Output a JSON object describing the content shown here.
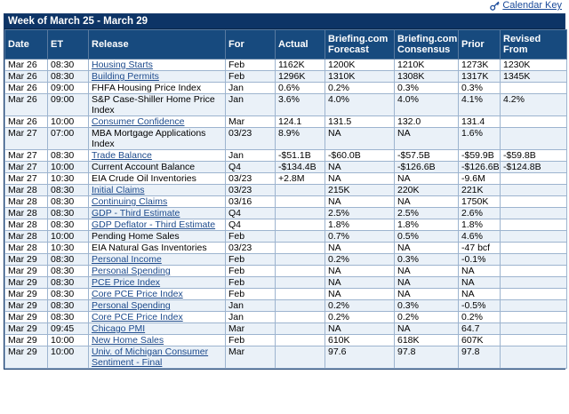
{
  "calendar_key_label": "Calendar Key",
  "week_title": "Week of March 25 - March 29",
  "headers": [
    "Date",
    "ET",
    "Release",
    "For",
    "Actual",
    "Briefing.com Forecast",
    "Briefing.com Consensus",
    "Prior",
    "Revised From"
  ],
  "rows": [
    {
      "date": "Mar 26",
      "et": "08:30",
      "release": "Housing Starts",
      "link": true,
      "for": "Feb",
      "actual": "1162K",
      "forecast": "1200K",
      "consensus": "1210K",
      "prior": "1273K",
      "revised": "1230K"
    },
    {
      "date": "Mar 26",
      "et": "08:30",
      "release": "Building Permits",
      "link": true,
      "for": "Feb",
      "actual": "1296K",
      "forecast": "1310K",
      "consensus": "1308K",
      "prior": "1317K",
      "revised": "1345K"
    },
    {
      "date": "Mar 26",
      "et": "09:00",
      "release": "FHFA Housing Price Index",
      "link": false,
      "for": "Jan",
      "actual": "0.6%",
      "forecast": "0.2%",
      "consensus": "0.3%",
      "prior": "0.3%",
      "revised": ""
    },
    {
      "date": "Mar 26",
      "et": "09:00",
      "release": "S&P Case-Shiller Home Price Index",
      "link": false,
      "tall": true,
      "for": "Jan",
      "actual": "3.6%",
      "forecast": "4.0%",
      "consensus": "4.0%",
      "prior": "4.1%",
      "revised": "4.2%"
    },
    {
      "date": "Mar 26",
      "et": "10:00",
      "release": "Consumer Confidence",
      "link": true,
      "for": "Mar",
      "actual": "124.1",
      "forecast": "131.5",
      "consensus": "132.0",
      "prior": "131.4",
      "revised": ""
    },
    {
      "date": "Mar 27",
      "et": "07:00",
      "release": "MBA Mortgage Applications Index",
      "link": false,
      "tall": true,
      "for": "03/23",
      "actual": "8.9%",
      "forecast": "NA",
      "consensus": "NA",
      "prior": "1.6%",
      "revised": ""
    },
    {
      "date": "Mar 27",
      "et": "08:30",
      "release": "Trade Balance",
      "link": true,
      "for": "Jan",
      "actual": "-$51.1B",
      "forecast": "-$60.0B",
      "consensus": "-$57.5B",
      "prior": "-$59.9B",
      "revised": "-$59.8B"
    },
    {
      "date": "Mar 27",
      "et": "10:00",
      "release": "Current Account Balance",
      "link": false,
      "for": "Q4",
      "actual": "-$134.4B",
      "forecast": "NA",
      "consensus": "-$126.6B",
      "prior": "-$126.6B",
      "revised": "-$124.8B"
    },
    {
      "date": "Mar 27",
      "et": "10:30",
      "release": "EIA Crude Oil Inventories",
      "link": false,
      "for": "03/23",
      "actual": "+2.8M",
      "forecast": "NA",
      "consensus": "NA",
      "prior": "-9.6M",
      "revised": ""
    },
    {
      "date": "Mar 28",
      "et": "08:30",
      "release": "Initial Claims",
      "link": true,
      "for": "03/23",
      "actual": "",
      "forecast": "215K",
      "consensus": "220K",
      "prior": "221K",
      "revised": ""
    },
    {
      "date": "Mar 28",
      "et": "08:30",
      "release": "Continuing Claims",
      "link": true,
      "for": "03/16",
      "actual": "",
      "forecast": "NA",
      "consensus": "NA",
      "prior": "1750K",
      "revised": ""
    },
    {
      "date": "Mar 28",
      "et": "08:30",
      "release": "GDP - Third Estimate",
      "link": true,
      "for": "Q4",
      "actual": "",
      "forecast": "2.5%",
      "consensus": "2.5%",
      "prior": "2.6%",
      "revised": ""
    },
    {
      "date": "Mar 28",
      "et": "08:30",
      "release": "GDP Deflator - Third Estimate",
      "link": true,
      "for": "Q4",
      "actual": "",
      "forecast": "1.8%",
      "consensus": "1.8%",
      "prior": "1.8%",
      "revised": ""
    },
    {
      "date": "Mar 28",
      "et": "10:00",
      "release": "Pending Home Sales",
      "link": false,
      "for": "Feb",
      "actual": "",
      "forecast": "0.7%",
      "consensus": "0.5%",
      "prior": "4.6%",
      "revised": ""
    },
    {
      "date": "Mar 28",
      "et": "10:30",
      "release": "EIA Natural Gas Inventories",
      "link": false,
      "for": "03/23",
      "actual": "",
      "forecast": "NA",
      "consensus": "NA",
      "prior": "-47 bcf",
      "revised": ""
    },
    {
      "date": "Mar 29",
      "et": "08:30",
      "release": "Personal Income",
      "link": true,
      "for": "Feb",
      "actual": "",
      "forecast": "0.2%",
      "consensus": "0.3%",
      "prior": "-0.1%",
      "revised": ""
    },
    {
      "date": "Mar 29",
      "et": "08:30",
      "release": "Personal Spending",
      "link": true,
      "for": "Feb",
      "actual": "",
      "forecast": "NA",
      "consensus": "NA",
      "prior": "NA",
      "revised": ""
    },
    {
      "date": "Mar 29",
      "et": "08:30",
      "release": "PCE Price Index",
      "link": true,
      "for": "Feb",
      "actual": "",
      "forecast": "NA",
      "consensus": "NA",
      "prior": "NA",
      "revised": ""
    },
    {
      "date": "Mar 29",
      "et": "08:30",
      "release": "Core PCE Price Index",
      "link": true,
      "for": "Feb",
      "actual": "",
      "forecast": "NA",
      "consensus": "NA",
      "prior": "NA",
      "revised": ""
    },
    {
      "date": "Mar 29",
      "et": "08:30",
      "release": "Personal Spending",
      "link": true,
      "for": "Jan",
      "actual": "",
      "forecast": "0.2%",
      "consensus": "0.3%",
      "prior": "-0.5%",
      "revised": ""
    },
    {
      "date": "Mar 29",
      "et": "08:30",
      "release": "Core PCE Price Index",
      "link": true,
      "for": "Jan",
      "actual": "",
      "forecast": "0.2%",
      "consensus": "0.2%",
      "prior": "0.2%",
      "revised": ""
    },
    {
      "date": "Mar 29",
      "et": "09:45",
      "release": "Chicago PMI",
      "link": true,
      "for": "Mar",
      "actual": "",
      "forecast": "NA",
      "consensus": "NA",
      "prior": "64.7",
      "revised": ""
    },
    {
      "date": "Mar 29",
      "et": "10:00",
      "release": "New Home Sales",
      "link": true,
      "for": "Feb",
      "actual": "",
      "forecast": "610K",
      "consensus": "618K",
      "prior": "607K",
      "revised": ""
    },
    {
      "date": "Mar 29",
      "et": "10:00",
      "release": "Univ. of Michigan Consumer Sentiment - Final",
      "link": true,
      "tall": true,
      "for": "Mar",
      "actual": "",
      "forecast": "97.6",
      "consensus": "97.8",
      "prior": "97.8",
      "revised": ""
    }
  ]
}
